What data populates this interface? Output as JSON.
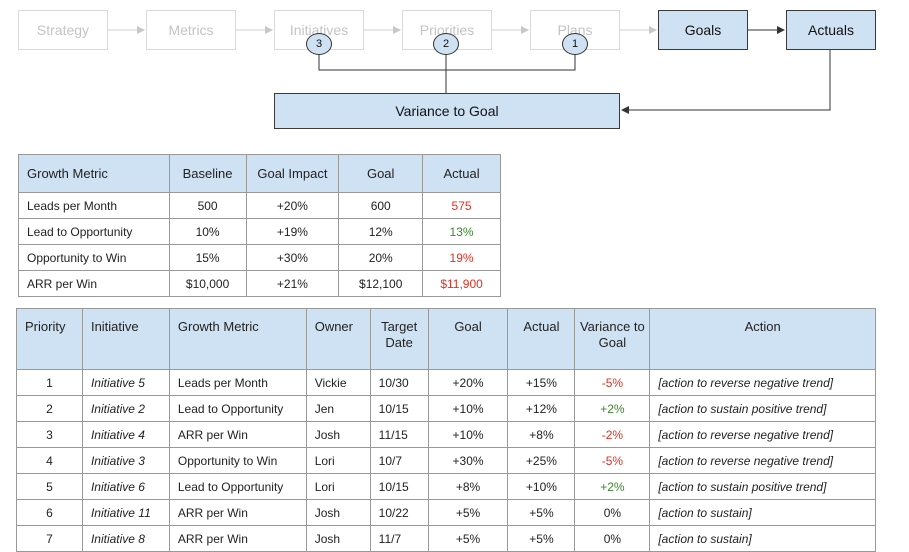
{
  "flow": {
    "steps": [
      "Strategy",
      "Metrics",
      "Initiatives",
      "Priorities",
      "Plans"
    ],
    "goals": "Goals",
    "actuals": "Actuals",
    "variance": "Variance to Goal",
    "badges": [
      "3",
      "2",
      "1"
    ]
  },
  "metrics_table": {
    "headers": [
      "Growth Metric",
      "Baseline",
      "Goal Impact",
      "Goal",
      "Actual"
    ],
    "rows": [
      {
        "metric": "Leads per Month",
        "baseline": "500",
        "impact": "+20%",
        "goal": "600",
        "actual": "575",
        "status": "negative"
      },
      {
        "metric": "Lead to Opportunity",
        "baseline": "10%",
        "impact": "+19%",
        "goal": "12%",
        "actual": "13%",
        "status": "positive"
      },
      {
        "metric": "Opportunity to Win",
        "baseline": "15%",
        "impact": "+30%",
        "goal": "20%",
        "actual": "19%",
        "status": "negative"
      },
      {
        "metric": "ARR per Win",
        "baseline": "$10,000",
        "impact": "+21%",
        "goal": "$12,100",
        "actual": "$11,900",
        "status": "negative"
      }
    ]
  },
  "initiatives_table": {
    "headers": [
      "Priority",
      "Initiative",
      "Growth Metric",
      "Owner",
      "Target Date",
      "Goal",
      "Actual",
      "Variance to Goal",
      "Action"
    ],
    "rows": [
      {
        "priority": "1",
        "initiative": "Initiative 5",
        "metric": "Leads per Month",
        "owner": "Vickie",
        "date": "10/30",
        "goal": "+20%",
        "actual": "+15%",
        "variance": "-5%",
        "status": "negative",
        "action": "[action to reverse negative trend]"
      },
      {
        "priority": "2",
        "initiative": "Initiative 2",
        "metric": "Lead to Opportunity",
        "owner": "Jen",
        "date": "10/15",
        "goal": "+10%",
        "actual": "+12%",
        "variance": "+2%",
        "status": "positive",
        "action": "[action to sustain positive trend]"
      },
      {
        "priority": "3",
        "initiative": "Initiative 4",
        "metric": "ARR per Win",
        "owner": "Josh",
        "date": "11/15",
        "goal": "+10%",
        "actual": "+8%",
        "variance": "-2%",
        "status": "negative",
        "action": "[action to reverse negative trend]"
      },
      {
        "priority": "4",
        "initiative": "Initiative 3",
        "metric": "Opportunity to Win",
        "owner": "Lori",
        "date": "10/7",
        "goal": "+30%",
        "actual": "+25%",
        "variance": "-5%",
        "status": "negative",
        "action": "[action to reverse negative trend]"
      },
      {
        "priority": "5",
        "initiative": "Initiative 6",
        "metric": "Lead to Opportunity",
        "owner": "Lori",
        "date": "10/15",
        "goal": "+8%",
        "actual": "+10%",
        "variance": "+2%",
        "status": "positive",
        "action": "[action to sustain positive trend]"
      },
      {
        "priority": "6",
        "initiative": "Initiative 11",
        "metric": "ARR per Win",
        "owner": "Josh",
        "date": "10/22",
        "goal": "+5%",
        "actual": "+5%",
        "variance": "0%",
        "status": "neutral",
        "action": "[action to sustain]"
      },
      {
        "priority": "7",
        "initiative": "Initiative 8",
        "metric": "ARR per Win",
        "owner": "Josh",
        "date": "11/7",
        "goal": "+5%",
        "actual": "+5%",
        "variance": "0%",
        "status": "neutral",
        "action": "[action to sustain]"
      }
    ]
  },
  "colors": {
    "negative": "#e03020",
    "positive": "#3a8a28",
    "box_fill": "#cfe2f3"
  }
}
